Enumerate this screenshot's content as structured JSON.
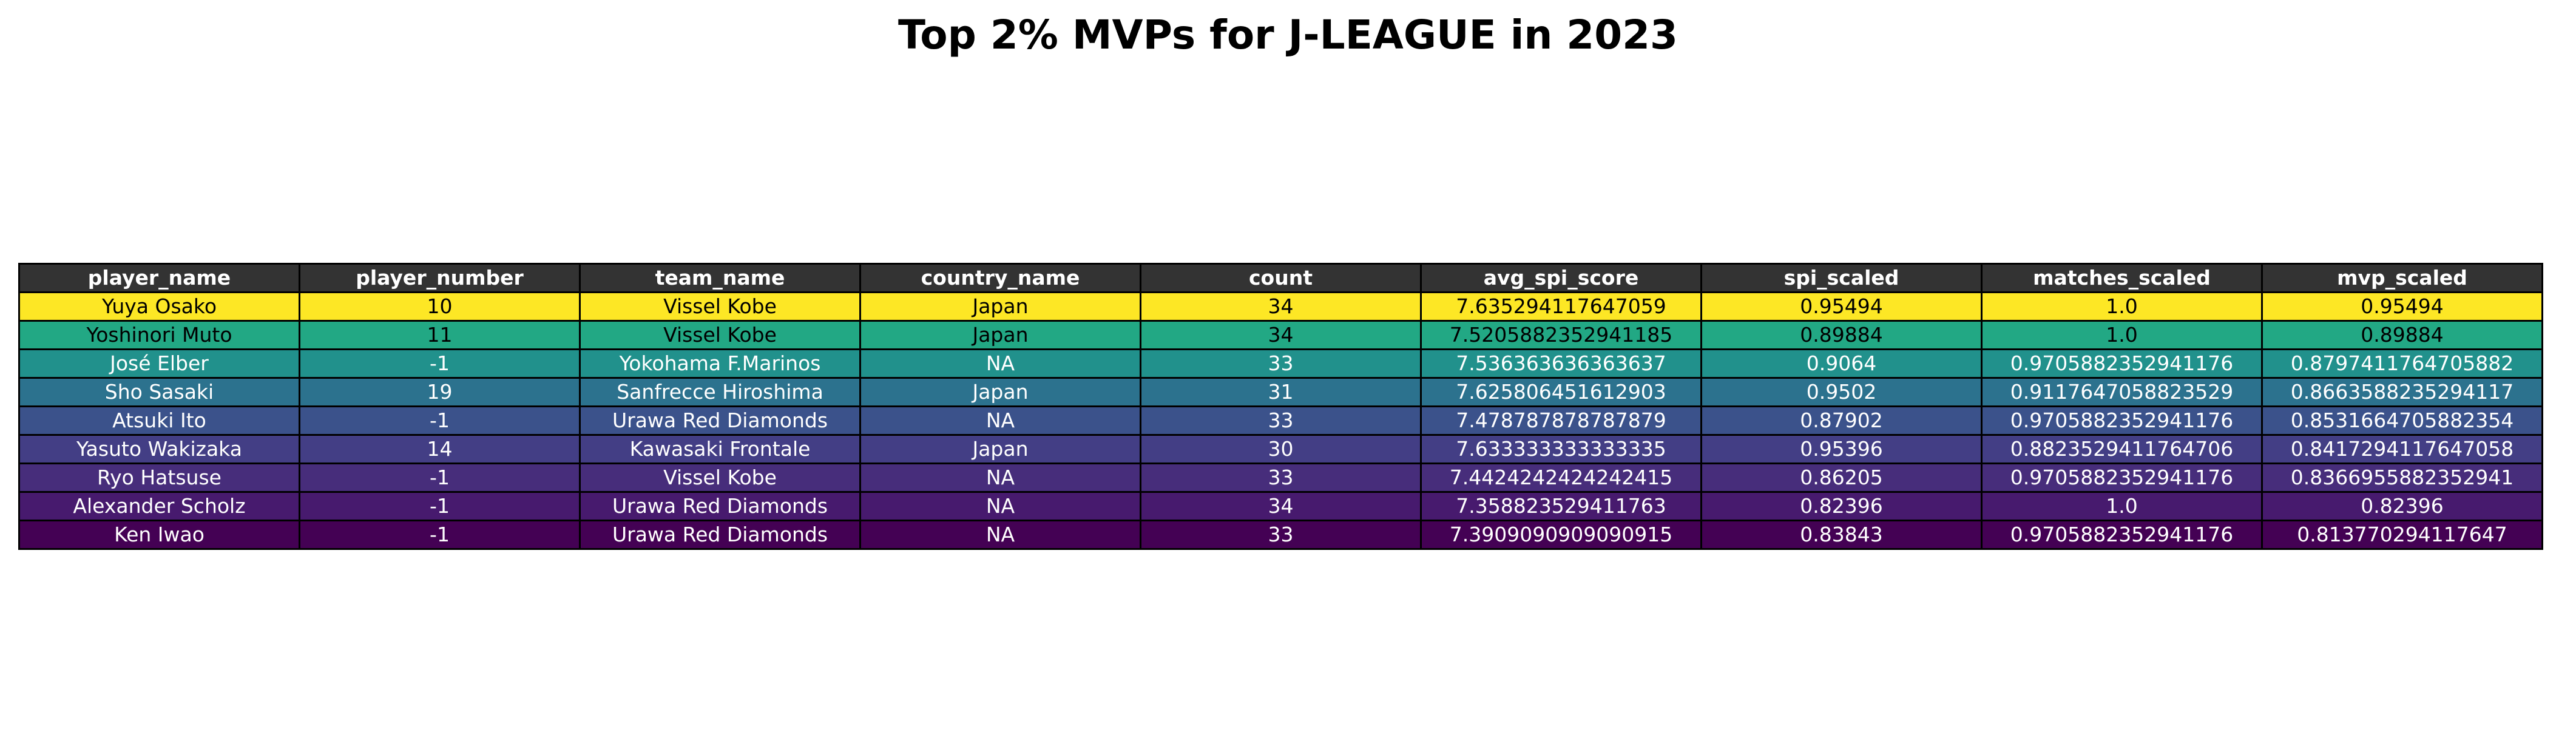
{
  "title": "Top 2% MVPs for J-LEAGUE in 2023",
  "chart_data": {
    "type": "table",
    "title": "Top 2% MVPs for J-LEAGUE in 2023",
    "header_color": "#333333",
    "columns": [
      "player_name",
      "player_number",
      "team_name",
      "country_name",
      "count",
      "avg_spi_score",
      "spi_scaled",
      "matches_scaled",
      "mvp_scaled"
    ],
    "rows": [
      {
        "cells": [
          "Yuya Osako",
          "10",
          "Vissel Kobe",
          "Japan",
          "34",
          "7.635294117647059",
          "0.95494",
          "1.0",
          "0.95494"
        ],
        "bg": "#fde725",
        "fg": "#000000"
      },
      {
        "cells": [
          "Yoshinori Muto",
          "11",
          "Vissel Kobe",
          "Japan",
          "34",
          "7.5205882352941185",
          "0.89884",
          "1.0",
          "0.89884"
        ],
        "bg": "#22a884",
        "fg": "#000000"
      },
      {
        "cells": [
          "José Elber",
          "-1",
          "Yokohama F.Marinos",
          "NA",
          "33",
          "7.536363636363637",
          "0.9064",
          "0.9705882352941176",
          "0.8797411764705882"
        ],
        "bg": "#21918c",
        "fg": "#ffffff"
      },
      {
        "cells": [
          "Sho Sasaki",
          "19",
          "Sanfrecce Hiroshima",
          "Japan",
          "31",
          "7.625806451612903",
          "0.9502",
          "0.9117647058823529",
          "0.8663588235294117"
        ],
        "bg": "#2c728e",
        "fg": "#ffffff"
      },
      {
        "cells": [
          "Atsuki Ito",
          "-1",
          "Urawa Red Diamonds",
          "NA",
          "33",
          "7.478787878787879",
          "0.87902",
          "0.9705882352941176",
          "0.8531664705882354"
        ],
        "bg": "#3b528b",
        "fg": "#ffffff"
      },
      {
        "cells": [
          "Yasuto Wakizaka",
          "14",
          "Kawasaki Frontale",
          "Japan",
          "30",
          "7.633333333333335",
          "0.95396",
          "0.8823529411764706",
          "0.8417294117647058"
        ],
        "bg": "#433e85",
        "fg": "#ffffff"
      },
      {
        "cells": [
          "Ryo Hatsuse",
          "-1",
          "Vissel Kobe",
          "NA",
          "33",
          "7.4424242424242415",
          "0.86205",
          "0.9705882352941176",
          "0.8366955882352941"
        ],
        "bg": "#472d7b",
        "fg": "#ffffff"
      },
      {
        "cells": [
          "Alexander Scholz",
          "-1",
          "Urawa Red Diamonds",
          "NA",
          "34",
          "7.358823529411763",
          "0.82396",
          "1.0",
          "0.82396"
        ],
        "bg": "#471a6e",
        "fg": "#ffffff"
      },
      {
        "cells": [
          "Ken Iwao",
          "-1",
          "Urawa Red Diamonds",
          "NA",
          "33",
          "7.3909090909090915",
          "0.83843",
          "0.9705882352941176",
          "0.813770294117647"
        ],
        "bg": "#440154",
        "fg": "#ffffff"
      }
    ]
  }
}
